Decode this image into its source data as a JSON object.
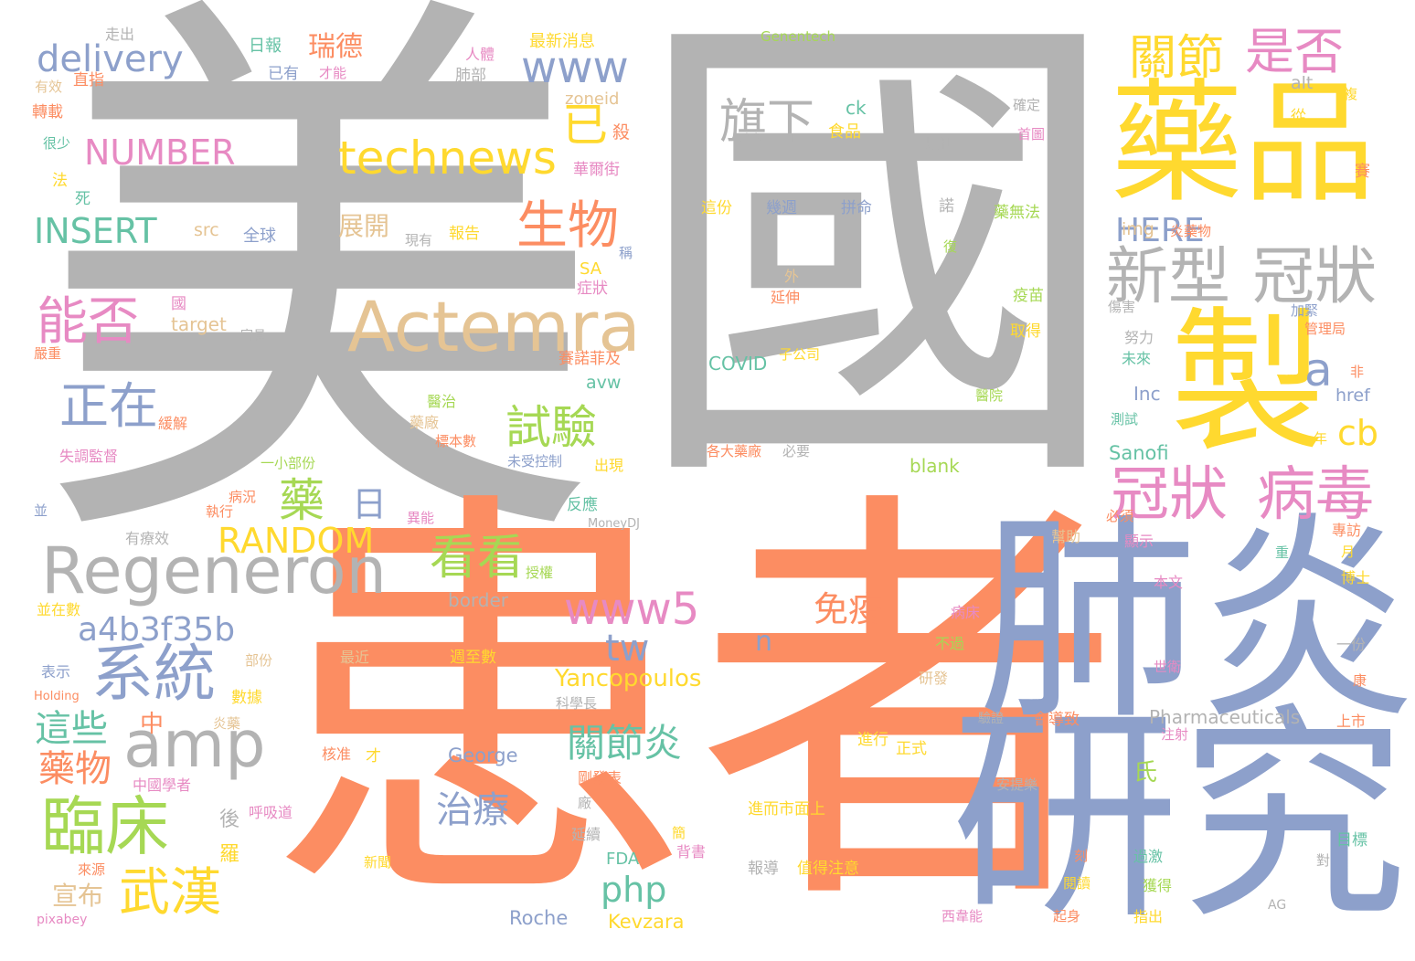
{
  "palette": {
    "gray": "#b3b3b3",
    "orange": "#fc8d62",
    "blue": "#8da0cb",
    "yellow": "#ffd92f",
    "green": "#a6d854",
    "pink": "#e78ac3",
    "teal": "#66c2a5",
    "tan": "#e5c494"
  },
  "words": [
    {
      "text": "美",
      "color": "gray"
    },
    {
      "text": "國",
      "color": "gray"
    },
    {
      "text": "患者",
      "color": "orange"
    },
    {
      "text": "肺炎",
      "color": "blue"
    },
    {
      "text": "研究",
      "color": "blue"
    },
    {
      "text": "藥品",
      "color": "yellow"
    },
    {
      "text": "製",
      "color": "yellow"
    },
    {
      "text": "Actemra",
      "color": "tan"
    },
    {
      "text": "Regeneron",
      "color": "gray"
    },
    {
      "text": "amp",
      "color": "gray"
    },
    {
      "text": "新型",
      "color": "gray"
    },
    {
      "text": "冠狀",
      "color": "gray"
    },
    {
      "text": "冠狀",
      "color": "pink"
    },
    {
      "text": "病毒",
      "color": "pink"
    },
    {
      "text": "technews",
      "color": "yellow"
    },
    {
      "text": "www",
      "color": "blue"
    },
    {
      "text": "www5",
      "color": "pink"
    },
    {
      "text": "生物",
      "color": "orange"
    },
    {
      "text": "系統",
      "color": "blue"
    },
    {
      "text": "臨床",
      "color": "green"
    },
    {
      "text": "武漢",
      "color": "yellow"
    },
    {
      "text": "正在",
      "color": "blue"
    },
    {
      "text": "能否",
      "color": "pink"
    },
    {
      "text": "試驗",
      "color": "green"
    },
    {
      "text": "看看",
      "color": "green"
    },
    {
      "text": "旗下",
      "color": "gray"
    },
    {
      "text": "關節",
      "color": "yellow"
    },
    {
      "text": "是否",
      "color": "pink"
    },
    {
      "text": "delivery",
      "color": "blue"
    },
    {
      "text": "NUMBER",
      "color": "pink"
    },
    {
      "text": "INSERT",
      "color": "teal"
    },
    {
      "text": "RANDOM",
      "color": "yellow"
    },
    {
      "text": "HERE",
      "color": "blue"
    },
    {
      "text": "a4b3f35b",
      "color": "blue"
    },
    {
      "text": "治療",
      "color": "blue"
    },
    {
      "text": "關節炎",
      "color": "teal"
    },
    {
      "text": "藥物",
      "color": "orange"
    },
    {
      "text": "這些",
      "color": "teal"
    },
    {
      "text": "免疫",
      "color": "orange"
    },
    {
      "text": "藥",
      "color": "green"
    },
    {
      "text": "日",
      "color": "blue"
    },
    {
      "text": "已",
      "color": "yellow"
    },
    {
      "text": "php",
      "color": "teal"
    },
    {
      "text": "tw",
      "color": "blue"
    },
    {
      "text": "a",
      "color": "blue"
    },
    {
      "text": "n",
      "color": "blue"
    },
    {
      "text": "cb",
      "color": "yellow"
    },
    {
      "text": "Yancopoulos",
      "color": "yellow"
    },
    {
      "text": "宣布",
      "color": "tan"
    },
    {
      "text": "瑞德",
      "color": "orange"
    },
    {
      "text": "展開",
      "color": "tan"
    },
    {
      "text": "George",
      "color": "blue"
    },
    {
      "text": "Pharmaceuticals",
      "color": "gray"
    },
    {
      "text": "Kevzara",
      "color": "yellow"
    },
    {
      "text": "Roche",
      "color": "blue"
    },
    {
      "text": "Sanofi",
      "color": "teal"
    },
    {
      "text": "COVID",
      "color": "teal"
    },
    {
      "text": "blank",
      "color": "green"
    },
    {
      "text": "border",
      "color": "gray"
    },
    {
      "text": "target",
      "color": "tan"
    },
    {
      "text": "src",
      "color": "tan"
    },
    {
      "text": "img",
      "color": "tan"
    },
    {
      "text": "href",
      "color": "blue"
    },
    {
      "text": "Inc",
      "color": "blue"
    },
    {
      "text": "alt",
      "color": "gray"
    },
    {
      "text": "zoneid",
      "color": "tan"
    },
    {
      "text": "avw",
      "color": "teal"
    },
    {
      "text": "ck",
      "color": "teal"
    },
    {
      "text": "SA",
      "color": "yellow"
    },
    {
      "text": "FDA",
      "color": "teal"
    },
    {
      "text": "AG",
      "color": "gray"
    },
    {
      "text": "Genentech",
      "color": "green"
    },
    {
      "text": "MoneyDJ",
      "color": "gray"
    },
    {
      "text": "pixabey",
      "color": "pink"
    },
    {
      "text": "Holding",
      "color": "orange"
    },
    {
      "text": "最新消息",
      "color": "yellow"
    },
    {
      "text": "日報",
      "color": "teal"
    },
    {
      "text": "已有",
      "color": "blue"
    },
    {
      "text": "人體",
      "color": "pink"
    },
    {
      "text": "才能",
      "color": "pink"
    },
    {
      "text": "肺部",
      "color": "gray"
    },
    {
      "text": "走出",
      "color": "gray"
    },
    {
      "text": "直指",
      "color": "orange"
    },
    {
      "text": "有效",
      "color": "tan"
    },
    {
      "text": "轉載",
      "color": "orange"
    },
    {
      "text": "很少",
      "color": "teal"
    },
    {
      "text": "法",
      "color": "yellow"
    },
    {
      "text": "死",
      "color": "teal"
    },
    {
      "text": "華爾街",
      "color": "pink"
    },
    {
      "text": "殺",
      "color": "orange"
    },
    {
      "text": "食品",
      "color": "yellow"
    },
    {
      "text": "順利",
      "color": "gray"
    },
    {
      "text": "確定",
      "color": "gray"
    },
    {
      "text": "首圖",
      "color": "pink"
    },
    {
      "text": "從",
      "color": "yellow"
    },
    {
      "text": "賽",
      "color": "orange"
    },
    {
      "text": "諾",
      "color": "gray"
    },
    {
      "text": "這份",
      "color": "yellow"
    },
    {
      "text": "幾週",
      "color": "blue"
    },
    {
      "text": "拼命",
      "color": "blue"
    },
    {
      "text": "藥無法",
      "color": "green"
    },
    {
      "text": "炎藥物",
      "color": "orange"
    },
    {
      "text": "全球",
      "color": "blue"
    },
    {
      "text": "報告",
      "color": "yellow"
    },
    {
      "text": "現有",
      "color": "gray"
    },
    {
      "text": "稱",
      "color": "blue"
    },
    {
      "text": "復",
      "color": "green"
    },
    {
      "text": "疫苗",
      "color": "green"
    },
    {
      "text": "取得",
      "color": "yellow"
    },
    {
      "text": "症狀",
      "color": "pink"
    },
    {
      "text": "國",
      "color": "pink"
    },
    {
      "text": "官員",
      "color": "gray"
    },
    {
      "text": "外",
      "color": "tan"
    },
    {
      "text": "延伸",
      "color": "orange"
    },
    {
      "text": "子公司",
      "color": "yellow"
    },
    {
      "text": "醫院",
      "color": "green"
    },
    {
      "text": "傷害",
      "color": "gray"
    },
    {
      "text": "加緊",
      "color": "blue"
    },
    {
      "text": "管理局",
      "color": "orange"
    },
    {
      "text": "努力",
      "color": "gray"
    },
    {
      "text": "未來",
      "color": "teal"
    },
    {
      "text": "非",
      "color": "orange"
    },
    {
      "text": "年",
      "color": "yellow"
    },
    {
      "text": "測試",
      "color": "teal"
    },
    {
      "text": "嚴重",
      "color": "orange"
    },
    {
      "text": "賽諾菲及",
      "color": "orange"
    },
    {
      "text": "醫治",
      "color": "green"
    },
    {
      "text": "藥廠",
      "color": "tan"
    },
    {
      "text": "標本數",
      "color": "orange"
    },
    {
      "text": "未受控制",
      "color": "blue"
    },
    {
      "text": "出現",
      "color": "yellow"
    },
    {
      "text": "緩解",
      "color": "orange"
    },
    {
      "text": "失調監督",
      "color": "pink"
    },
    {
      "text": "一小部份",
      "color": "green"
    },
    {
      "text": "各大藥廠",
      "color": "orange"
    },
    {
      "text": "必要",
      "color": "gray"
    },
    {
      "text": "並",
      "color": "blue"
    },
    {
      "text": "執行",
      "color": "orange"
    },
    {
      "text": "病況",
      "color": "orange"
    },
    {
      "text": "異能",
      "color": "pink"
    },
    {
      "text": "反應",
      "color": "teal"
    },
    {
      "text": "有療效",
      "color": "gray"
    },
    {
      "text": "幫助",
      "color": "tan"
    },
    {
      "text": "必須",
      "color": "orange"
    },
    {
      "text": "顯示",
      "color": "pink"
    },
    {
      "text": "專訪",
      "color": "orange"
    },
    {
      "text": "授權",
      "color": "green"
    },
    {
      "text": "重",
      "color": "teal"
    },
    {
      "text": "月",
      "color": "yellow"
    },
    {
      "text": "博士",
      "color": "yellow"
    },
    {
      "text": "本文",
      "color": "pink"
    },
    {
      "text": "病床",
      "color": "pink"
    },
    {
      "text": "一份",
      "color": "gray"
    },
    {
      "text": "並在數",
      "color": "yellow"
    },
    {
      "text": "最近",
      "color": "tan"
    },
    {
      "text": "週至數",
      "color": "yellow"
    },
    {
      "text": "不過",
      "color": "green"
    },
    {
      "text": "世衛",
      "color": "pink"
    },
    {
      "text": "康",
      "color": "orange"
    },
    {
      "text": "表示",
      "color": "blue"
    },
    {
      "text": "部份",
      "color": "tan"
    },
    {
      "text": "數據",
      "color": "yellow"
    },
    {
      "text": "研發",
      "color": "tan"
    },
    {
      "text": "科學長",
      "color": "gray"
    },
    {
      "text": "中",
      "color": "orange"
    },
    {
      "text": "炎藥",
      "color": "tan"
    },
    {
      "text": "會導致",
      "color": "orange"
    },
    {
      "text": "驗證",
      "color": "gray"
    },
    {
      "text": "注射",
      "color": "pink"
    },
    {
      "text": "上市",
      "color": "orange"
    },
    {
      "text": "正式",
      "color": "yellow"
    },
    {
      "text": "進行",
      "color": "yellow"
    },
    {
      "text": "核准",
      "color": "orange"
    },
    {
      "text": "才",
      "color": "yellow"
    },
    {
      "text": "中國學者",
      "color": "pink"
    },
    {
      "text": "剛發表",
      "color": "orange"
    },
    {
      "text": "安提樂",
      "color": "gray"
    },
    {
      "text": "氏",
      "color": "green"
    },
    {
      "text": "呼吸道",
      "color": "pink"
    },
    {
      "text": "後",
      "color": "gray"
    },
    {
      "text": "進而市面上",
      "color": "yellow"
    },
    {
      "text": "羅",
      "color": "yellow"
    },
    {
      "text": "廠",
      "color": "gray"
    },
    {
      "text": "延續",
      "color": "gray"
    },
    {
      "text": "背書",
      "color": "pink"
    },
    {
      "text": "簡",
      "color": "yellow"
    },
    {
      "text": "來源",
      "color": "orange"
    },
    {
      "text": "報導",
      "color": "gray"
    },
    {
      "text": "值得注意",
      "color": "yellow"
    },
    {
      "text": "新聞",
      "color": "yellow"
    },
    {
      "text": "閱讀",
      "color": "yellow"
    },
    {
      "text": "過激",
      "color": "teal"
    },
    {
      "text": "目標",
      "color": "teal"
    },
    {
      "text": "對",
      "color": "gray"
    },
    {
      "text": "獲得",
      "color": "green"
    },
    {
      "text": "西韋能",
      "color": "pink"
    },
    {
      "text": "起身",
      "color": "orange"
    },
    {
      "text": "指出",
      "color": "yellow"
    },
    {
      "text": "刻",
      "color": "orange"
    },
    {
      "text": "複",
      "color": "yellow"
    }
  ]
}
